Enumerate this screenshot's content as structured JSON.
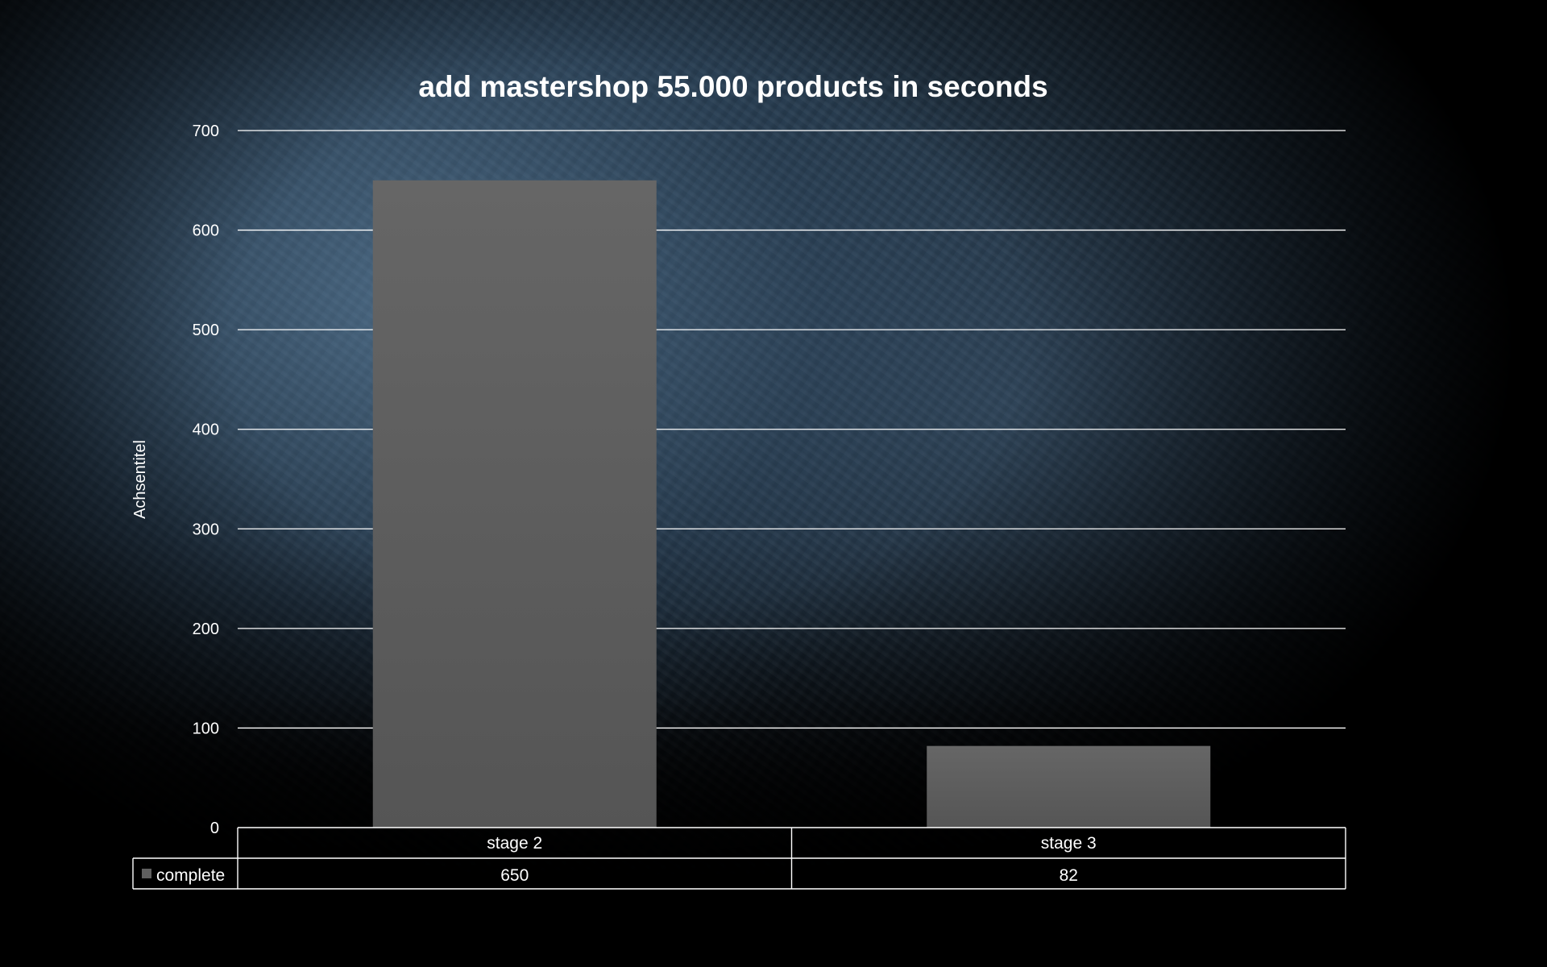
{
  "chart_data": {
    "type": "bar",
    "title": "add mastershop 55.000 products in seconds",
    "ylabel": "Achsentitel",
    "xlabel": "",
    "categories": [
      "stage 2",
      "stage 3"
    ],
    "series": [
      {
        "name": "complete",
        "values": [
          650,
          82
        ],
        "color": "#5f5f5f"
      }
    ],
    "ylim": [
      0,
      700
    ],
    "yticks": [
      0,
      100,
      200,
      300,
      400,
      500,
      600,
      700
    ],
    "grid": true,
    "legend": "data-table",
    "data_table": true
  }
}
